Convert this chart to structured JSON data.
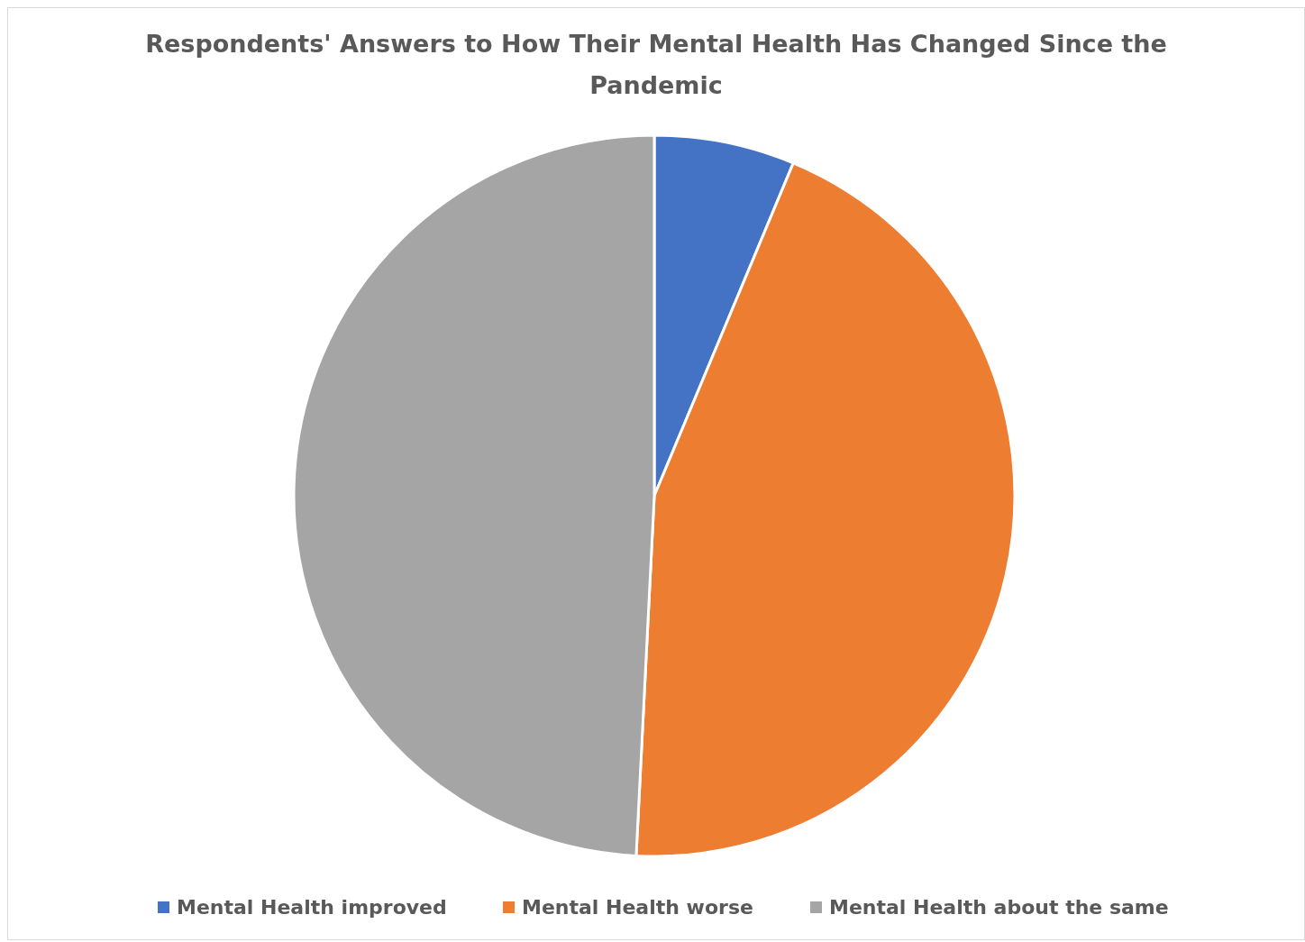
{
  "chart_data": {
    "type": "pie",
    "title": "Respondents' Answers to How Their Mental Health Has Changed Since the Pandemic",
    "categories": [
      "Mental Health improved",
      "Mental Health worse",
      "Mental Health about the same"
    ],
    "values": [
      6.3,
      44.5,
      49.2
    ],
    "colors": [
      "#4472c4",
      "#ed7d31",
      "#a5a5a5"
    ],
    "legend": "bottom"
  }
}
